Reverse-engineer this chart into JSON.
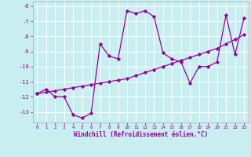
{
  "xlabel": "Windchill (Refroidissement éolien,°C)",
  "bg_color": "#c8eef0",
  "line_color": "#990099",
  "grid_color": "#ffffff",
  "x_data": [
    0,
    1,
    2,
    3,
    4,
    5,
    6,
    7,
    8,
    9,
    10,
    11,
    12,
    13,
    14,
    15,
    16,
    17,
    18,
    19,
    20,
    21,
    22,
    23
  ],
  "y_zigzag": [
    -11.8,
    -11.5,
    -12.0,
    -12.0,
    -13.2,
    -13.4,
    -13.1,
    -8.5,
    -9.3,
    -9.5,
    -6.3,
    -6.5,
    -6.3,
    -6.7,
    -9.1,
    -9.5,
    -9.7,
    -11.1,
    -10.0,
    -10.0,
    -9.7,
    -6.6,
    -9.2,
    -6.8
  ],
  "y_trend": [
    -11.8,
    -11.7,
    -11.6,
    -11.5,
    -11.4,
    -11.3,
    -11.2,
    -11.1,
    -11.0,
    -10.9,
    -10.8,
    -10.6,
    -10.4,
    -10.2,
    -10.0,
    -9.8,
    -9.6,
    -9.4,
    -9.2,
    -9.0,
    -8.8,
    -8.5,
    -8.2,
    -7.9
  ],
  "xlim": [
    -0.5,
    23.5
  ],
  "ylim": [
    -13.7,
    -5.7
  ],
  "yticks": [
    -13,
    -12,
    -11,
    -10,
    -9,
    -8,
    -7,
    -6
  ],
  "xticks": [
    0,
    1,
    2,
    3,
    4,
    5,
    6,
    7,
    8,
    9,
    10,
    11,
    12,
    13,
    14,
    15,
    16,
    17,
    18,
    19,
    20,
    21,
    22,
    23
  ],
  "marker": "D",
  "markersize": 2.2,
  "linewidth": 0.9
}
